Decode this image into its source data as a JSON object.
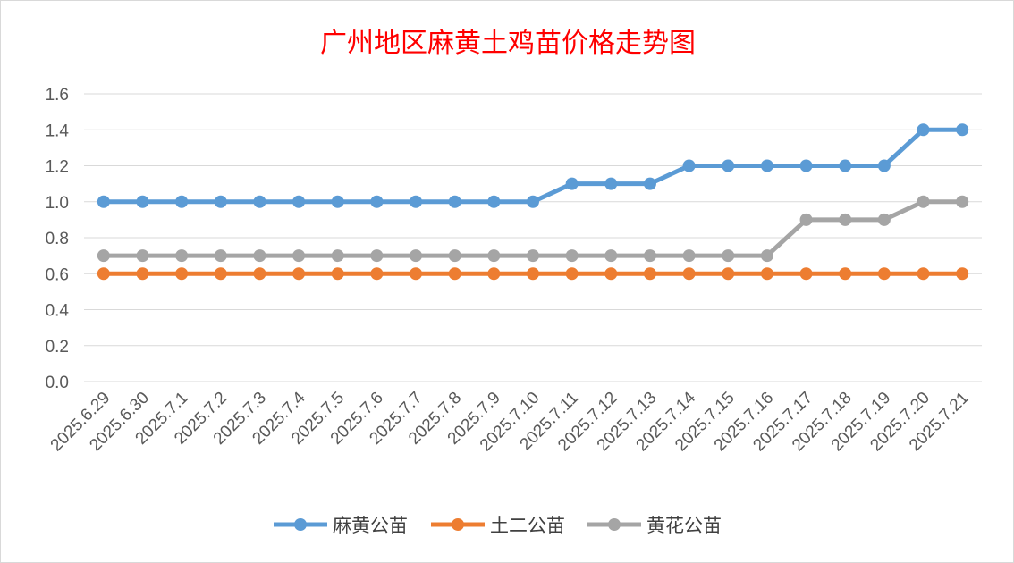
{
  "chart_data": {
    "type": "line",
    "title": "广州地区麻黄土鸡苗价格走势图",
    "xlabel": "",
    "ylabel": "",
    "ylim": [
      0,
      1.6
    ],
    "yticks": [
      "0.0",
      "0.2",
      "0.4",
      "0.6",
      "0.8",
      "1.0",
      "1.2",
      "1.4",
      "1.6"
    ],
    "grid": true,
    "legend_position": "bottom",
    "categories": [
      "2025.6.29",
      "2025.6.30",
      "2025.7.1",
      "2025.7.2",
      "2025.7.3",
      "2025.7.4",
      "2025.7.5",
      "2025.7.6",
      "2025.7.7",
      "2025.7.8",
      "2025.7.9",
      "2025.7.10",
      "2025.7.11",
      "2025.7.12",
      "2025.7.13",
      "2025.7.14",
      "2025.7.15",
      "2025.7.16",
      "2025.7.17",
      "2025.7.18",
      "2025.7.19",
      "2025.7.20",
      "2025.7.21"
    ],
    "series": [
      {
        "name": "麻黄公苗",
        "color": "#5b9bd5",
        "values": [
          1.0,
          1.0,
          1.0,
          1.0,
          1.0,
          1.0,
          1.0,
          1.0,
          1.0,
          1.0,
          1.0,
          1.0,
          1.1,
          1.1,
          1.1,
          1.2,
          1.2,
          1.2,
          1.2,
          1.2,
          1.2,
          1.4,
          1.4
        ]
      },
      {
        "name": "土二公苗",
        "color": "#ed7d31",
        "values": [
          0.6,
          0.6,
          0.6,
          0.6,
          0.6,
          0.6,
          0.6,
          0.6,
          0.6,
          0.6,
          0.6,
          0.6,
          0.6,
          0.6,
          0.6,
          0.6,
          0.6,
          0.6,
          0.6,
          0.6,
          0.6,
          0.6,
          0.6
        ]
      },
      {
        "name": "黄花公苗",
        "color": "#a5a5a5",
        "values": [
          0.7,
          0.7,
          0.7,
          0.7,
          0.7,
          0.7,
          0.7,
          0.7,
          0.7,
          0.7,
          0.7,
          0.7,
          0.7,
          0.7,
          0.7,
          0.7,
          0.7,
          0.7,
          0.9,
          0.9,
          0.9,
          1.0,
          1.0
        ]
      }
    ]
  }
}
